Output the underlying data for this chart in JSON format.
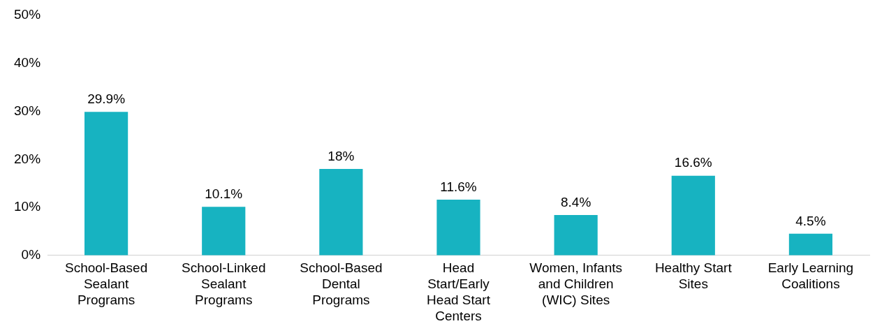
{
  "chart_data": {
    "type": "bar",
    "categories": [
      "School-Based Sealant Programs",
      "School-Linked Sealant Programs",
      "School-Based Dental Programs",
      "Head Start/Early Head Start Centers",
      "Women, Infants and Children (WIC) Sites",
      "Healthy Start Sites",
      "Early Learning Coalitions"
    ],
    "values": [
      29.9,
      10.1,
      18,
      11.6,
      8.4,
      16.6,
      4.5
    ],
    "value_labels": [
      "29.9%",
      "10.1%",
      "18%",
      "11.6%",
      "8.4%",
      "16.6%",
      "4.5%"
    ],
    "color": "#17b3c1",
    "ylim": [
      0,
      50
    ],
    "yticks": [
      {
        "value": 0,
        "label": "0%"
      },
      {
        "value": 10,
        "label": "10%"
      },
      {
        "value": 20,
        "label": "20%"
      },
      {
        "value": 30,
        "label": "30%"
      },
      {
        "value": 40,
        "label": "40%"
      },
      {
        "value": 50,
        "label": "50%"
      }
    ],
    "grid": false,
    "legend": false
  }
}
